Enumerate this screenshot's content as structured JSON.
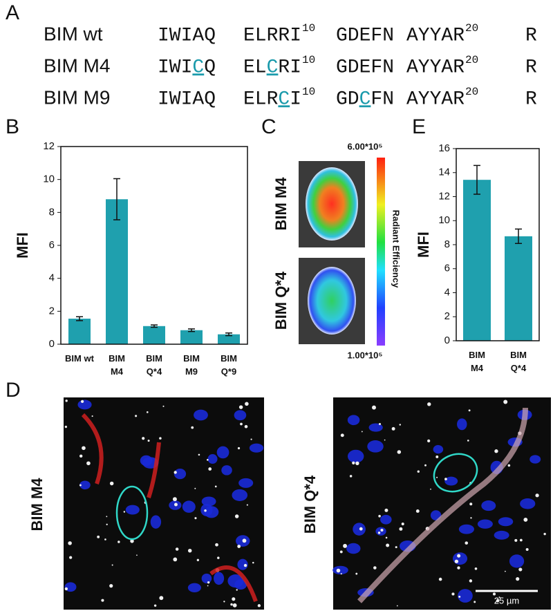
{
  "panel_labels": [
    "A",
    "B",
    "C",
    "D",
    "E"
  ],
  "sequences": {
    "rows": [
      {
        "name": "BIM wt",
        "groups": [
          {
            "pieces": [
              {
                "text": "IWIAQ"
              }
            ]
          },
          {
            "pieces": [
              {
                "text": "ELRRI"
              }
            ],
            "sup": "10"
          },
          {
            "pieces": [
              {
                "text": "GDEFN"
              }
            ]
          },
          {
            "pieces": [
              {
                "text": "AYYAR"
              }
            ],
            "sup": "20"
          },
          {
            "pieces": [
              {
                "text": "R"
              }
            ]
          }
        ]
      },
      {
        "name": "BIM M4",
        "groups": [
          {
            "pieces": [
              {
                "text": "IWI"
              },
              {
                "text": "C",
                "mutated": true
              },
              {
                "text": "Q"
              }
            ]
          },
          {
            "pieces": [
              {
                "text": "EL"
              },
              {
                "text": "C",
                "mutated": true
              },
              {
                "text": "RI"
              }
            ],
            "sup": "10"
          },
          {
            "pieces": [
              {
                "text": "GDEFN"
              }
            ]
          },
          {
            "pieces": [
              {
                "text": "AYYAR"
              }
            ],
            "sup": "20"
          },
          {
            "pieces": [
              {
                "text": "R"
              }
            ]
          }
        ]
      },
      {
        "name": "BIM M9",
        "groups": [
          {
            "pieces": [
              {
                "text": "IWIAQ"
              }
            ]
          },
          {
            "pieces": [
              {
                "text": "ELR"
              },
              {
                "text": "C",
                "mutated": true
              },
              {
                "text": "I"
              }
            ],
            "sup": "10"
          },
          {
            "pieces": [
              {
                "text": "GD"
              },
              {
                "text": "C",
                "mutated": true
              },
              {
                "text": "FN"
              }
            ]
          },
          {
            "pieces": [
              {
                "text": "AYYAR"
              }
            ],
            "sup": "20"
          },
          {
            "pieces": [
              {
                "text": "R"
              }
            ]
          }
        ]
      }
    ],
    "mutation_color": "#1a9aab"
  },
  "chart_data": [
    {
      "type": "bar",
      "ylabel": "MFI",
      "categories": [
        "BIM wt",
        "BIM\nM4",
        "BIM\nQ*4",
        "BIM\nM9",
        "BIM\nQ*9"
      ],
      "values": [
        1.55,
        8.8,
        1.1,
        0.85,
        0.6
      ],
      "errors": [
        0.12,
        1.25,
        0.07,
        0.08,
        0.08
      ],
      "color": "#1fa0ae",
      "ylim": [
        0,
        12
      ],
      "yticks": [
        0,
        2,
        4,
        6,
        8,
        10,
        12
      ]
    },
    {
      "type": "bar",
      "ylabel": "MFI",
      "categories": [
        "BIM\nM4",
        "BIM\nQ*4"
      ],
      "values": [
        13.4,
        8.7
      ],
      "errors": [
        1.2,
        0.6
      ],
      "color": "#1fa0ae",
      "ylim": [
        0,
        16
      ],
      "yticks": [
        0,
        2,
        4,
        6,
        8,
        10,
        12,
        14,
        16
      ]
    }
  ],
  "imaging": {
    "labels": [
      "BIM M4",
      "BIM Q*4"
    ],
    "scale_max": "6.00*10⁵",
    "scale_min": "1.00*10⁵",
    "scale_title": "Radiant Efficiency"
  },
  "microscopy": {
    "labels": [
      "BIM M4",
      "BIM Q*4"
    ],
    "scale_bar": "25 µm"
  }
}
